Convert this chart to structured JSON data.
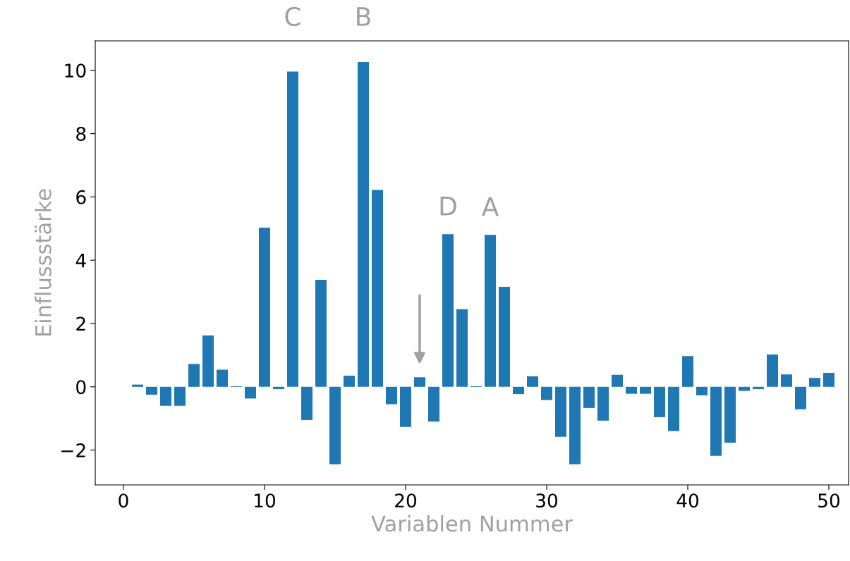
{
  "chart_data": {
    "type": "bar",
    "xlabel": "Variablen Nummer",
    "ylabel": "Einflussstärke",
    "x": [
      1,
      2,
      3,
      4,
      5,
      6,
      7,
      8,
      9,
      10,
      11,
      12,
      13,
      14,
      15,
      16,
      17,
      18,
      19,
      20,
      21,
      22,
      23,
      24,
      25,
      26,
      27,
      28,
      29,
      30,
      31,
      32,
      33,
      34,
      35,
      36,
      37,
      38,
      39,
      40,
      41,
      42,
      43,
      44,
      45,
      46,
      47,
      48,
      49,
      50
    ],
    "series": [
      {
        "color": "#1f77b4",
        "values": [
          0.07,
          -0.25,
          -0.6,
          -0.6,
          0.72,
          1.62,
          0.54,
          0.02,
          -0.37,
          5.03,
          -0.07,
          9.96,
          -1.05,
          3.38,
          -2.45,
          0.35,
          10.26,
          6.22,
          -0.55,
          -1.27,
          0.3,
          -1.1,
          4.82,
          2.45,
          0.02,
          4.8,
          3.16,
          -0.23,
          0.33,
          -0.42,
          -1.58,
          -2.45,
          -0.67,
          -1.07,
          0.38,
          -0.22,
          -0.22,
          -0.96,
          -1.4,
          0.97,
          -0.27,
          -2.18,
          -1.77,
          -0.13,
          -0.07,
          1.02,
          0.39,
          -0.71,
          0.28,
          0.44
        ]
      }
    ],
    "xlim": [
      -2,
      51.4
    ],
    "ylim": [
      -3.1,
      10.93
    ],
    "xticks": [
      0,
      10,
      20,
      30,
      40,
      50
    ],
    "yticks": [
      {
        "value": -2,
        "label": "−2"
      },
      0,
      2,
      4,
      6,
      8,
      10
    ],
    "annotations": [
      {
        "text": "C",
        "x": 12,
        "y": 9.96
      },
      {
        "text": "B",
        "x": 17,
        "y": 10.26
      },
      {
        "text": "D",
        "x": 23,
        "y": 4.82
      },
      {
        "text": "A",
        "x": 26,
        "y": 4.8
      }
    ],
    "grid": false,
    "legend": false
  }
}
